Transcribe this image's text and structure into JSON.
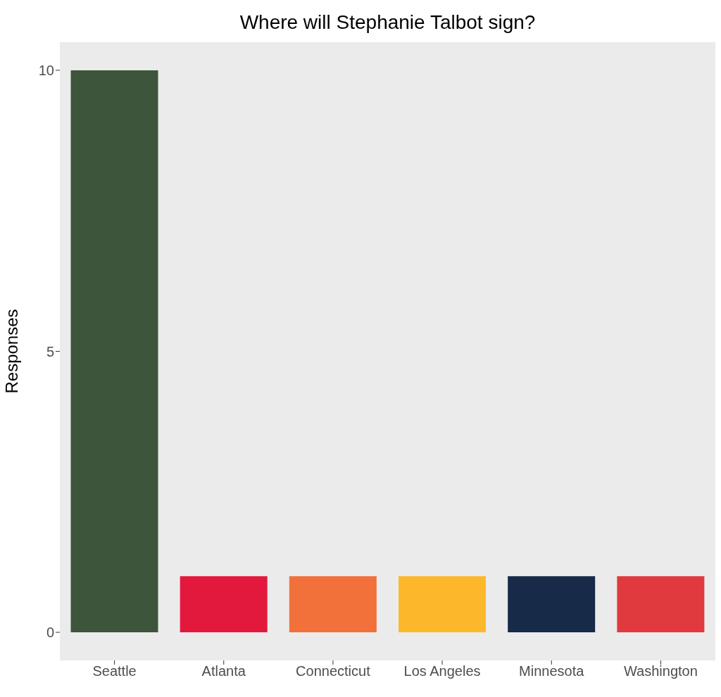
{
  "chart_data": {
    "type": "bar",
    "title": "Where will Stephanie Talbot sign?",
    "ylabel": "Responses",
    "categories": [
      "Seattle",
      "Atlanta",
      "Connecticut",
      "Los Angeles",
      "Minnesota",
      "Washington"
    ],
    "values": [
      10,
      1,
      1,
      1,
      1,
      1
    ],
    "colors": [
      "#3d553a",
      "#e3183d",
      "#f2703a",
      "#fdb72a",
      "#172a47",
      "#e03a3e"
    ],
    "ylim": [
      -0.5,
      10.5
    ],
    "yticks": [
      0,
      5,
      10
    ],
    "grid": false,
    "legend": false
  }
}
